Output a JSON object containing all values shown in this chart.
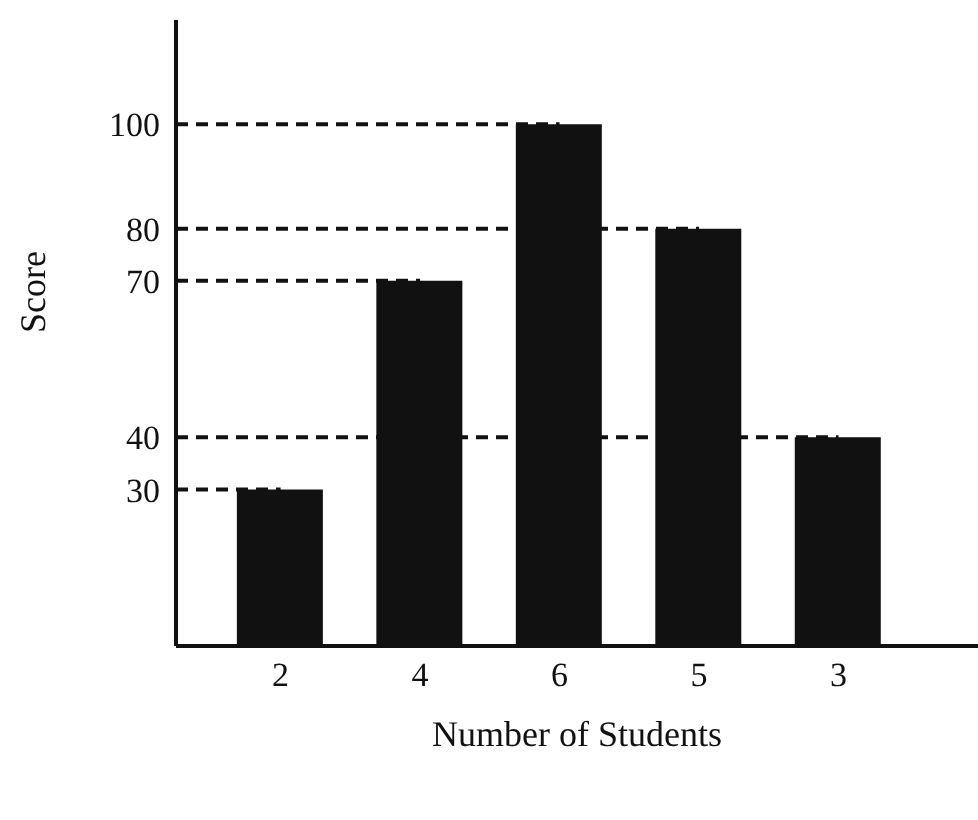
{
  "chart_data": {
    "type": "bar",
    "xlabel": "Number of Students",
    "ylabel": "Score",
    "categories": [
      "2",
      "4",
      "6",
      "5",
      "3"
    ],
    "values": [
      30,
      70,
      100,
      80,
      40
    ],
    "color": "#111111",
    "ylim": [
      0,
      120
    ],
    "yticks": [
      30,
      40,
      70,
      80,
      100
    ],
    "ref_lines": [
      {
        "axis": "y",
        "value": 30,
        "line_style": "dashed",
        "color": "#111111"
      },
      {
        "axis": "y",
        "value": 40,
        "line_style": "dashed",
        "color": "#111111"
      },
      {
        "axis": "y",
        "value": 70,
        "line_style": "dashed",
        "color": "#111111"
      },
      {
        "axis": "y",
        "value": 80,
        "line_style": "dashed",
        "color": "#111111"
      },
      {
        "axis": "y",
        "value": 100,
        "line_style": "dashed",
        "color": "#111111"
      }
    ],
    "grid": false,
    "legend": false
  }
}
